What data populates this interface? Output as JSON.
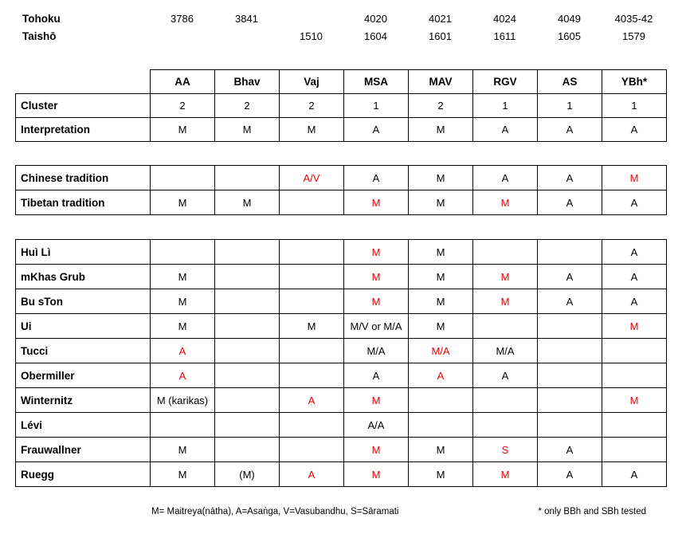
{
  "colors": {
    "red": "#ee0000",
    "text": "#000000",
    "background": "#ffffff"
  },
  "catalog": {
    "rows": [
      {
        "label": "Tohoku",
        "values": [
          "3786",
          "3841",
          "",
          "4020",
          "4021",
          "4024",
          "4049",
          "4035-42"
        ]
      },
      {
        "label": "Taishō",
        "values": [
          "",
          "",
          "1510",
          "1604",
          "1601",
          "1611",
          "1605",
          "1579"
        ]
      }
    ]
  },
  "columns": [
    "AA",
    "Bhav",
    "Vaj",
    "MSA",
    "MAV",
    "RGV",
    "AS",
    "YBh*"
  ],
  "cluster_table": {
    "rows": [
      {
        "label": "Cluster",
        "cells": [
          "2",
          "2",
          "2",
          "1",
          "2",
          "1",
          "1",
          "1"
        ]
      },
      {
        "label": "Interpretation",
        "cells": [
          "M",
          "M",
          "M",
          "A",
          "M",
          "A",
          "A",
          "A"
        ]
      }
    ]
  },
  "tradition_table": {
    "rows": [
      {
        "label": "Chinese tradition",
        "cells": [
          "",
          "",
          {
            "text": "A/V",
            "red": true
          },
          "A",
          "M",
          "A",
          "A",
          {
            "text": "M",
            "red": true
          }
        ]
      },
      {
        "label": "Tibetan tradition",
        "cells": [
          "M",
          "M",
          "",
          {
            "text": "M",
            "red": true
          },
          "M",
          {
            "text": "M",
            "red": true
          },
          "A",
          "A"
        ]
      }
    ]
  },
  "scholars_table": {
    "rows": [
      {
        "label": "Huì Lì",
        "cells": [
          "",
          "",
          "",
          {
            "text": "M",
            "red": true
          },
          "M",
          "",
          "",
          "A"
        ]
      },
      {
        "label": "mKhas Grub",
        "cells": [
          "M",
          "",
          "",
          {
            "text": "M",
            "red": true
          },
          "M",
          {
            "text": "M",
            "red": true
          },
          "A",
          "A"
        ]
      },
      {
        "label": "Bu sTon",
        "cells": [
          "M",
          "",
          "",
          {
            "text": "M",
            "red": true
          },
          "M",
          {
            "text": "M",
            "red": true
          },
          "A",
          "A"
        ]
      },
      {
        "label": "Ui",
        "cells": [
          "M",
          "",
          "M",
          "M/V or M/A",
          "M",
          "",
          "",
          {
            "text": "M",
            "red": true
          }
        ]
      },
      {
        "label": "Tucci",
        "cells": [
          {
            "text": "A",
            "red": true
          },
          "",
          "",
          "M/A",
          {
            "text": "M/A",
            "red": true
          },
          "M/A",
          "",
          ""
        ]
      },
      {
        "label": "Obermiller",
        "cells": [
          {
            "text": "A",
            "red": true
          },
          "",
          "",
          "A",
          {
            "text": "A",
            "red": true
          },
          "A",
          "",
          ""
        ]
      },
      {
        "label": "Winternitz",
        "cells": [
          "M (karikas)",
          "",
          {
            "text": "A",
            "red": true
          },
          {
            "text": "M",
            "red": true
          },
          "",
          "",
          "",
          {
            "text": "M",
            "red": true
          }
        ]
      },
      {
        "label": "Lévi",
        "cells": [
          "",
          "",
          "",
          "A/A",
          "",
          "",
          "",
          ""
        ]
      },
      {
        "label": "Frauwallner",
        "cells": [
          "M",
          "",
          "",
          {
            "text": "M",
            "red": true
          },
          "M",
          {
            "text": "S",
            "red": true
          },
          "A",
          ""
        ]
      },
      {
        "label": "Ruegg",
        "cells": [
          "M",
          "(M)",
          {
            "text": "A",
            "red": true
          },
          {
            "text": "M",
            "red": true
          },
          "M",
          {
            "text": "M",
            "red": true
          },
          "A",
          "A"
        ]
      }
    ]
  },
  "footnotes": {
    "legend": "M= Maitreya(nātha), A=Asaṅga, V=Vasubandhu, S=Sāramati",
    "asterisk": "* only BBh and SBh tested"
  }
}
